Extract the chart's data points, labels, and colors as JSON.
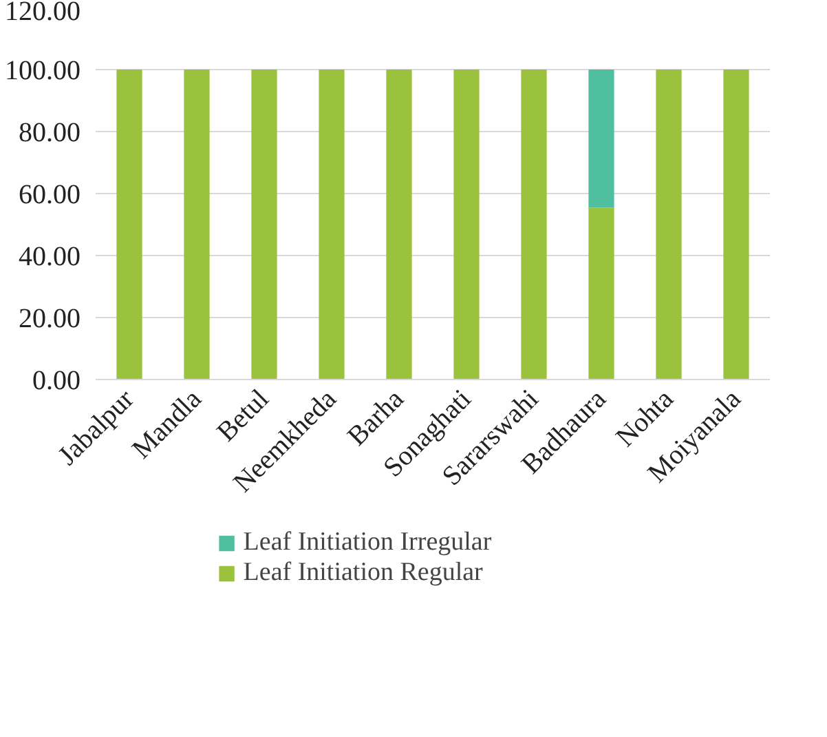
{
  "chart_data": {
    "type": "bar",
    "stacked": true,
    "categories": [
      "Jabalpur",
      "Mandla",
      "Betul",
      "Neemkheda",
      "Barha",
      "Sonaghati",
      "Sararswahi",
      "Badhaura",
      "Nohta",
      "Moiyanala"
    ],
    "series": [
      {
        "name": "Leaf Initiation Regular",
        "color": "#9bc23c",
        "values": [
          100,
          100,
          100,
          100,
          100,
          100,
          100,
          55.5,
          100,
          100
        ]
      },
      {
        "name": "Leaf Initiation Irregular",
        "color": "#4fbfa0",
        "values": [
          0,
          0,
          0,
          0,
          0,
          0,
          0,
          44.5,
          0,
          0
        ]
      }
    ],
    "ylim": [
      0,
      120
    ],
    "yticks": [
      {
        "value": 0,
        "label": "0.00"
      },
      {
        "value": 20,
        "label": "20.00"
      },
      {
        "value": 40,
        "label": "40.00"
      },
      {
        "value": 60,
        "label": "60.00"
      },
      {
        "value": 80,
        "label": "80.00"
      },
      {
        "value": 100,
        "label": "100.00"
      },
      {
        "value": 120,
        "label": "120.00"
      }
    ],
    "grid": "y",
    "legend": "bottom"
  }
}
